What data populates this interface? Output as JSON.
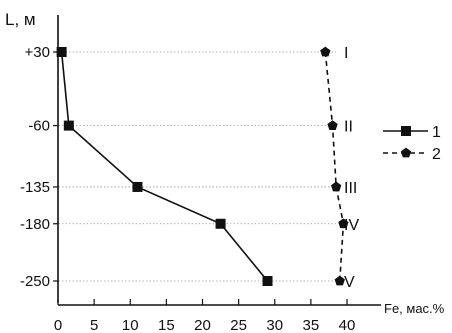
{
  "chart_data": {
    "type": "line",
    "ylabel": "L, м",
    "xlabel": "Fe, мас.%",
    "x_ticks": [
      0,
      5,
      10,
      15,
      20,
      25,
      30,
      35,
      40
    ],
    "y_ticks": [
      30,
      -60,
      -135,
      -180,
      -250
    ],
    "y_tick_labels": [
      "+30",
      "-60",
      "-135",
      "-180",
      "-250"
    ],
    "xlim": [
      0,
      40
    ],
    "ylim": [
      -250,
      30
    ],
    "grid": "dotted horizontal lines at level ticks",
    "levels": [
      {
        "label": "I",
        "y": 30
      },
      {
        "label": "II",
        "y": -60
      },
      {
        "label": "III",
        "y": -135
      },
      {
        "label": "IV",
        "y": -180
      },
      {
        "label": "V",
        "y": -250
      }
    ],
    "series": [
      {
        "name": "1",
        "style": "solid",
        "marker": "square",
        "points": [
          {
            "x": 0.5,
            "y": 30
          },
          {
            "x": 1.5,
            "y": -60
          },
          {
            "x": 11,
            "y": -135
          },
          {
            "x": 22.5,
            "y": -180
          },
          {
            "x": 29,
            "y": -250
          }
        ]
      },
      {
        "name": "2",
        "style": "dashed",
        "marker": "pentagon",
        "points": [
          {
            "x": 37,
            "y": 30
          },
          {
            "x": 38,
            "y": -60
          },
          {
            "x": 38.5,
            "y": -135
          },
          {
            "x": 39.5,
            "y": -180
          },
          {
            "x": 39,
            "y": -250
          }
        ]
      }
    ],
    "legend": {
      "placement": "right",
      "entries": [
        "1",
        "2"
      ]
    },
    "colors": {
      "line": "#111111",
      "grid": "#888888"
    }
  }
}
